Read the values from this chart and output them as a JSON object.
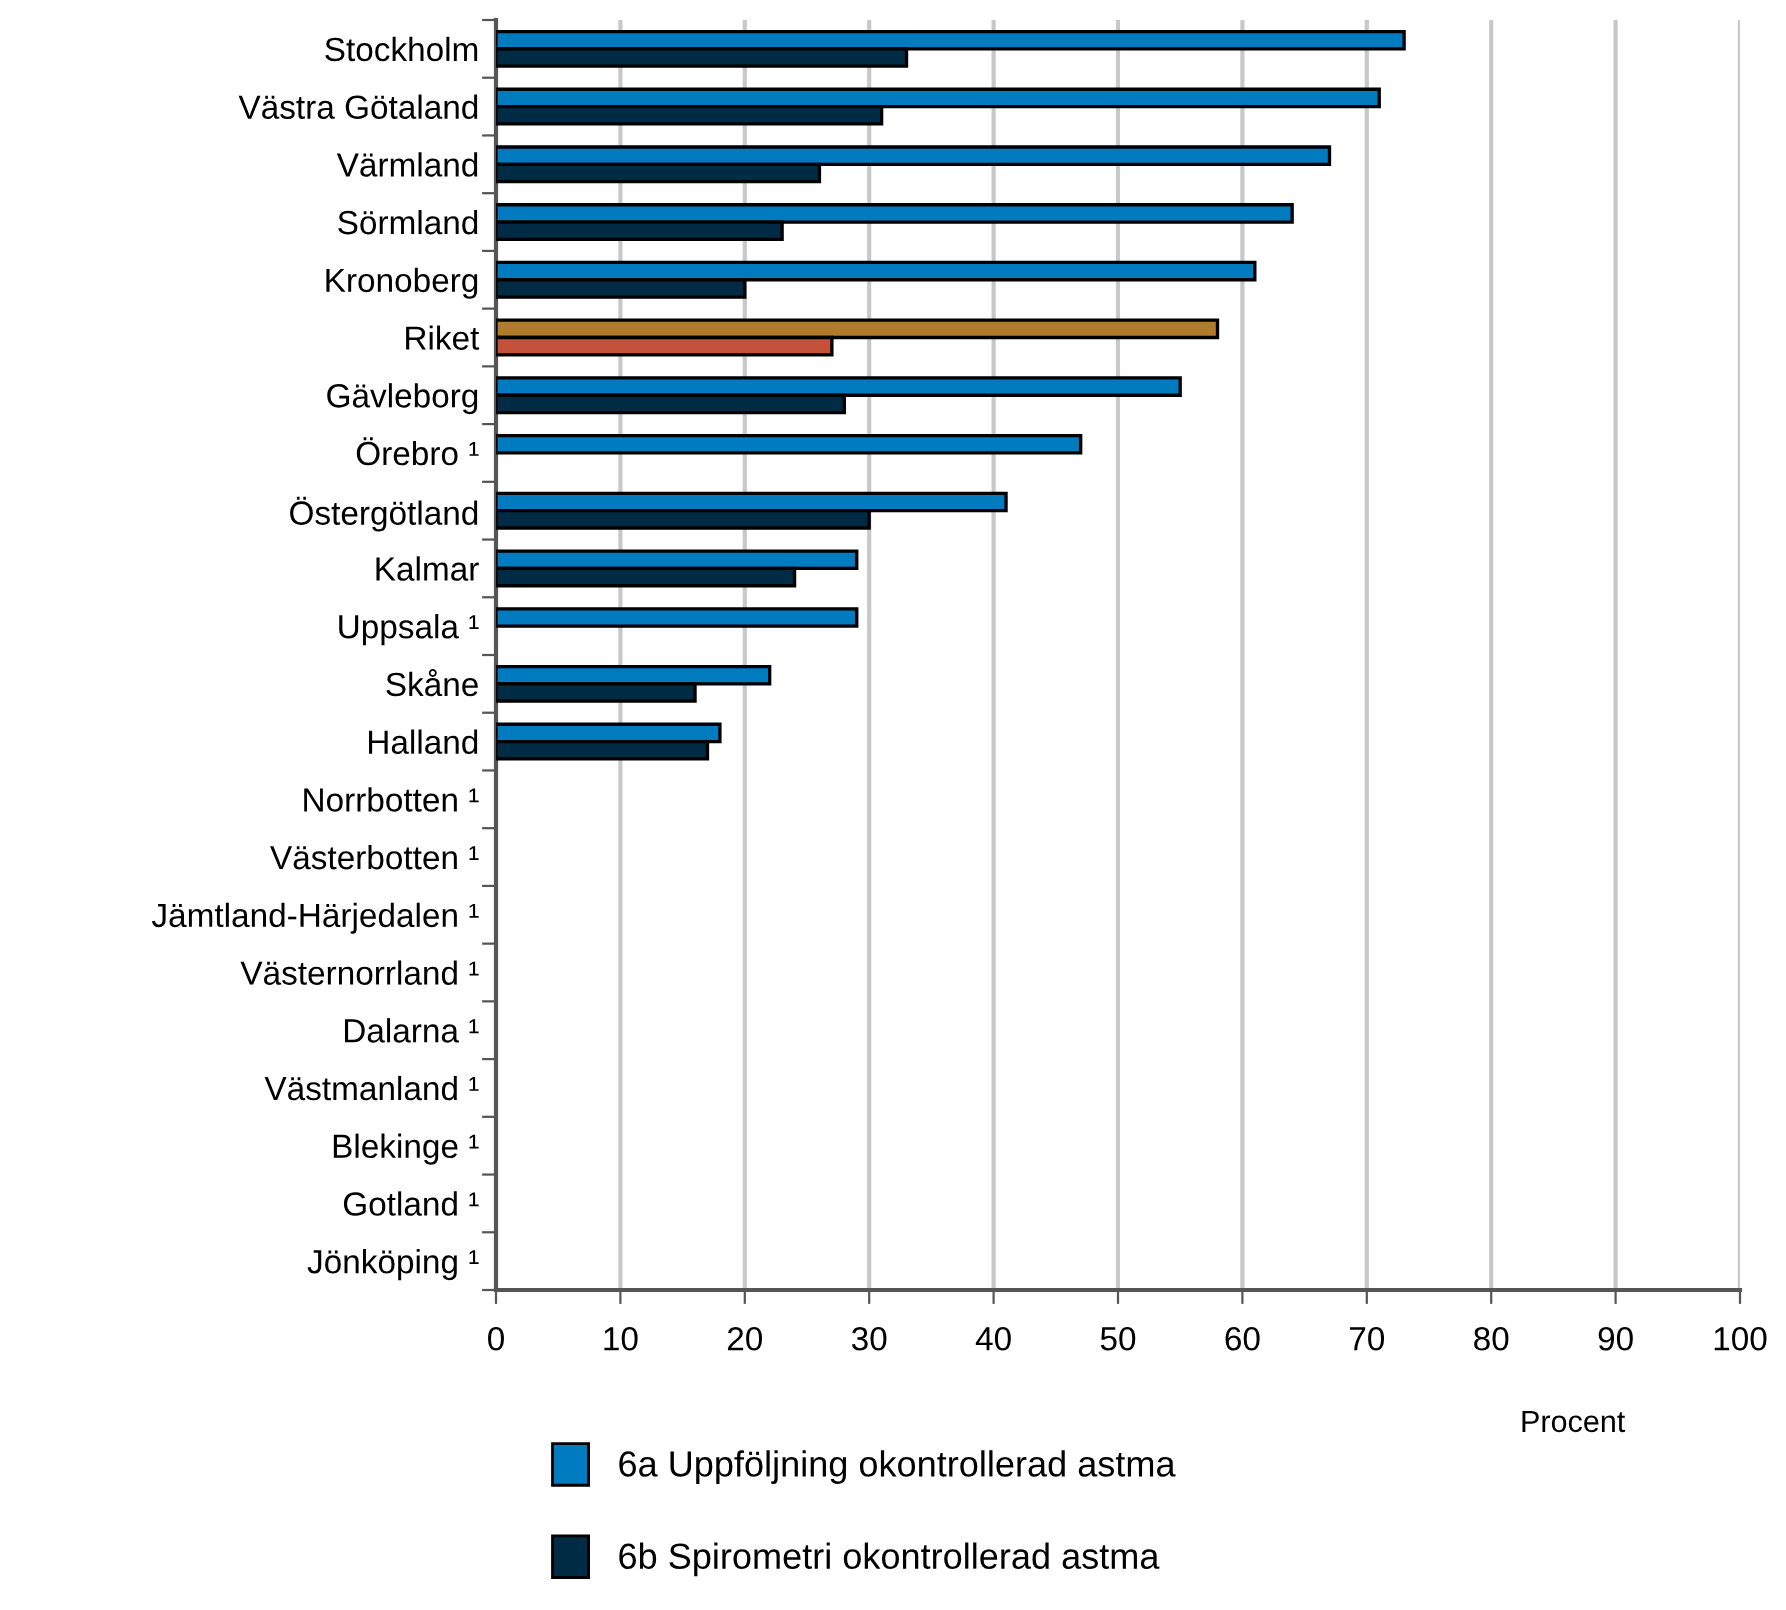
{
  "chart_data": {
    "type": "bar",
    "orientation": "horizontal",
    "xlabel": "Procent",
    "categories": [
      "Stockholm",
      "Västra Götaland",
      "Värmland",
      "Sörmland",
      "Kronoberg",
      "Riket",
      "Gävleborg",
      "Örebro ¹",
      "Östergötland",
      "Kalmar",
      "Uppsala ¹",
      "Skåne",
      "Halland",
      "Norrbotten ¹",
      "Västerbotten ¹",
      "Jämtland-Härjedalen ¹",
      "Västernorrland ¹",
      "Dalarna ¹",
      "Västmanland ¹",
      "Blekinge ¹",
      "Gotland ¹",
      "Jönköping ¹"
    ],
    "series": [
      {
        "name": "6a Uppföljning okontrollerad astma",
        "color": "#007bc0",
        "colors": [
          "#007bc0",
          "#007bc0",
          "#007bc0",
          "#007bc0",
          "#007bc0",
          "#b07c2c",
          "#007bc0",
          "#007bc0",
          "#007bc0",
          "#007bc0",
          "#007bc0",
          "#007bc0",
          "#007bc0",
          "#007bc0",
          "#007bc0",
          "#007bc0",
          "#007bc0",
          "#007bc0",
          "#007bc0",
          "#007bc0",
          "#007bc0",
          "#007bc0"
        ],
        "values": [
          73,
          71,
          67,
          64,
          61,
          58,
          55,
          47,
          41,
          29,
          29,
          22,
          18,
          null,
          null,
          null,
          null,
          null,
          null,
          null,
          null,
          null
        ]
      },
      {
        "name": "6b Spirometri okontrollerad astma",
        "color": "#002b45",
        "colors": [
          "#002b45",
          "#002b45",
          "#002b45",
          "#002b45",
          "#002b45",
          "#c4523a",
          "#002b45",
          "#002b45",
          "#002b45",
          "#002b45",
          "#002b45",
          "#002b45",
          "#002b45",
          "#002b45",
          "#002b45",
          "#002b45",
          "#002b45",
          "#002b45",
          "#002b45",
          "#002b45",
          "#002b45",
          "#002b45"
        ],
        "values": [
          33,
          31,
          26,
          23,
          20,
          27,
          28,
          null,
          30,
          24,
          null,
          16,
          17,
          null,
          null,
          null,
          null,
          null,
          null,
          null,
          null,
          null
        ]
      }
    ],
    "xlim": [
      0,
      100
    ],
    "xticks": [
      0,
      10,
      20,
      30,
      40,
      50,
      60,
      70,
      80,
      90,
      100
    ],
    "grid": "x",
    "legend": "bottom"
  }
}
